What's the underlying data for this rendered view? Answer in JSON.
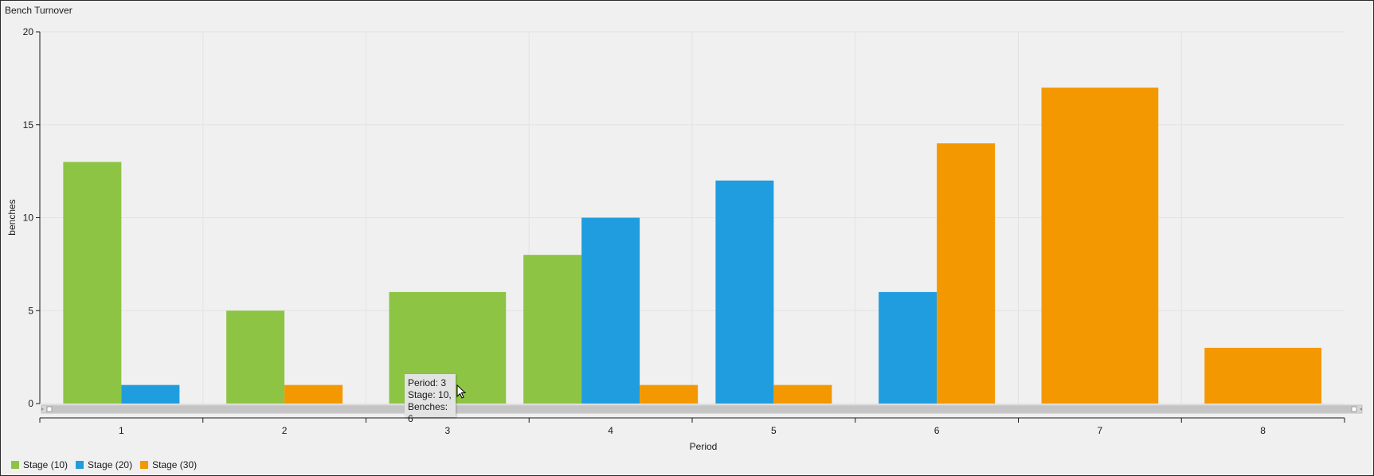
{
  "chart_data": {
    "type": "bar",
    "title": "Bench Turnover",
    "xlabel": "Period",
    "ylabel": "benches",
    "ylim": [
      0,
      20
    ],
    "yticks": [
      0,
      5,
      10,
      15,
      20
    ],
    "categories": [
      "1",
      "2",
      "3",
      "4",
      "5",
      "6",
      "7",
      "8"
    ],
    "grid": true,
    "legend_position": "bottom-left",
    "series": [
      {
        "name": "Stage (10)",
        "color": "#8dc444",
        "values": [
          13,
          5,
          6,
          8,
          0,
          0,
          0,
          0
        ]
      },
      {
        "name": "Stage (20)",
        "color": "#1f9dde",
        "values": [
          1,
          0,
          0,
          10,
          12,
          6,
          0,
          0
        ]
      },
      {
        "name": "Stage (30)",
        "color": "#f39800",
        "values": [
          0,
          1,
          0,
          1,
          1,
          14,
          17,
          3
        ]
      }
    ]
  },
  "tooltip": {
    "line1": "Period: 3",
    "line2": "Stage: 10,",
    "line3": "Benches: 6"
  }
}
